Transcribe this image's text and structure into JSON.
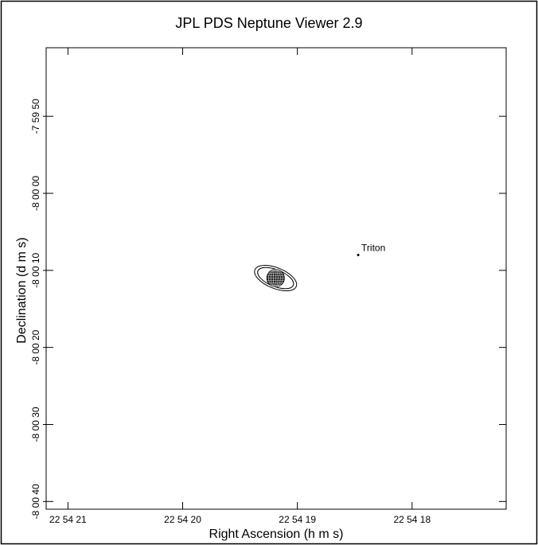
{
  "chart_data": {
    "type": "scatter",
    "title": "JPL PDS Neptune Viewer 2.9",
    "xlabel": "Right Ascension (h m s)",
    "ylabel": "Declination (d m s)",
    "xlim": [
      21.19,
      17.18
    ],
    "ylim": [
      -41.0,
      18.9
    ],
    "xticks": [
      {
        "value": 21,
        "label": "22 54 21"
      },
      {
        "value": 20,
        "label": "22 54 20"
      },
      {
        "value": 19,
        "label": "22 54 19"
      },
      {
        "value": 18,
        "label": "22 54 18"
      }
    ],
    "yticks": [
      {
        "value": 10,
        "label": "-7 59 50"
      },
      {
        "value": 0,
        "label": "-8 00 00"
      },
      {
        "value": -10,
        "label": "-8 00 10"
      },
      {
        "value": -20,
        "label": "-8 00 20"
      },
      {
        "value": -30,
        "label": "-8 00 30"
      },
      {
        "value": -40,
        "label": "-8 00 40"
      }
    ],
    "planet": {
      "x": 19.19,
      "y": -11.0
    },
    "moons": [
      {
        "name": "Triton",
        "x": 18.47,
        "y": -8.0
      }
    ]
  }
}
